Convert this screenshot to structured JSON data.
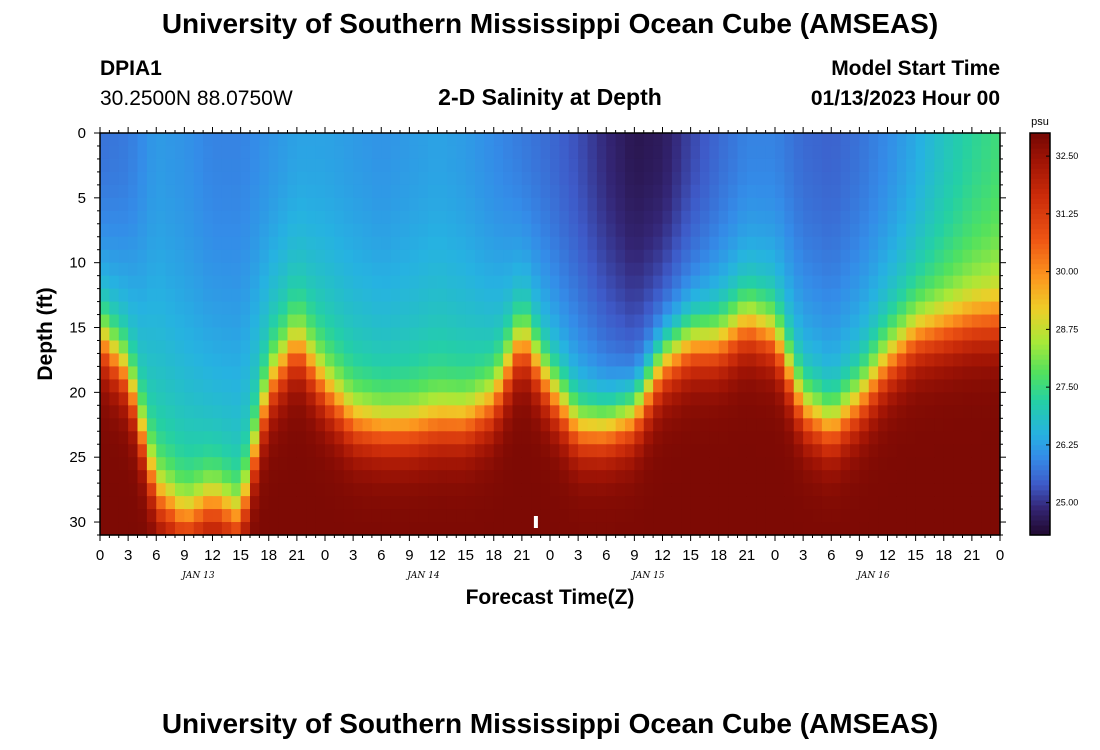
{
  "header": {
    "title": "University of Southern Mississippi Ocean Cube (AMSEAS)",
    "station_id": "DPIA1",
    "station_coords": "30.2500N  88.0750W",
    "plot_title": "2-D Salinity at Depth",
    "model_start_label": "Model Start Time",
    "model_start_value": "01/13/2023 Hour 00"
  },
  "footer": {
    "title": "University of Southern Mississippi Ocean Cube (AMSEAS)"
  },
  "chart_data": {
    "type": "heatmap",
    "title": "2-D Salinity at Depth",
    "xlabel": "Forecast Time(Z)",
    "ylabel": "Depth (ft)",
    "xlim": [
      0,
      96
    ],
    "ylim": [
      31,
      0
    ],
    "x_tick_labels": [
      "0",
      "3",
      "6",
      "9",
      "12",
      "15",
      "18",
      "21",
      "0",
      "3",
      "6",
      "9",
      "12",
      "15",
      "18",
      "21",
      "0",
      "3",
      "6",
      "9",
      "12",
      "15",
      "18",
      "21",
      "0",
      "3",
      "6",
      "9",
      "12",
      "15",
      "18",
      "21",
      "0"
    ],
    "y_ticks": [
      0,
      5,
      10,
      15,
      20,
      25,
      30
    ],
    "y_tick_labels": [
      "0",
      "5",
      "10",
      "15",
      "20",
      "25",
      "30"
    ],
    "day_labels": [
      "JAN 13",
      "JAN 14",
      "JAN 15",
      "JAN 16"
    ],
    "colorbar": {
      "unit": "psu",
      "ticks": [
        25.0,
        26.25,
        27.5,
        28.75,
        30.0,
        31.25,
        32.5
      ],
      "tick_labels": [
        "25.00",
        "26.25",
        "27.50",
        "28.75",
        "30.00",
        "31.25",
        "32.50"
      ],
      "range": [
        24.3,
        33.0
      ]
    },
    "field_description": "Fresher surface layer (25.5-26.5 psu) over saline bottom water (32-33 psu); halocline depth oscillates with tide",
    "halocline_depth_ft": {
      "hours": [
        0,
        3,
        6,
        9,
        12,
        15,
        18,
        21,
        24,
        27,
        30,
        33,
        36,
        39,
        42,
        45,
        48,
        51,
        54,
        57,
        60,
        63,
        66,
        69,
        72,
        75,
        78,
        81,
        84,
        87,
        90,
        93,
        96
      ],
      "values": [
        16,
        19,
        28,
        30,
        28.5,
        30,
        20,
        16.5,
        20,
        22.5,
        23,
        23,
        22.5,
        22.5,
        21,
        16,
        20,
        23,
        23,
        22,
        18,
        16.5,
        16.5,
        15,
        16,
        21.5,
        23,
        21,
        18,
        16,
        15.5,
        15,
        15
      ]
    },
    "surface_salinity_psu": {
      "hours": [
        0,
        3,
        6,
        9,
        12,
        15,
        18,
        21,
        24,
        27,
        30,
        33,
        36,
        39,
        42,
        45,
        48,
        51,
        54,
        57,
        60,
        63,
        66,
        69,
        72,
        75,
        78,
        81,
        84,
        87,
        90,
        93,
        96
      ],
      "values": [
        25.7,
        25.8,
        26.2,
        26.1,
        25.9,
        25.9,
        26.1,
        26.3,
        26.3,
        26.2,
        26.1,
        26.2,
        26.3,
        26.2,
        26.0,
        25.8,
        25.6,
        25.3,
        24.9,
        24.6,
        24.7,
        25.2,
        25.6,
        25.9,
        25.9,
        25.6,
        25.5,
        25.7,
        26.0,
        26.4,
        26.9,
        27.3,
        27.6
      ]
    },
    "bottom_salinity_psu": 32.9,
    "marker_hour": 46.5
  }
}
